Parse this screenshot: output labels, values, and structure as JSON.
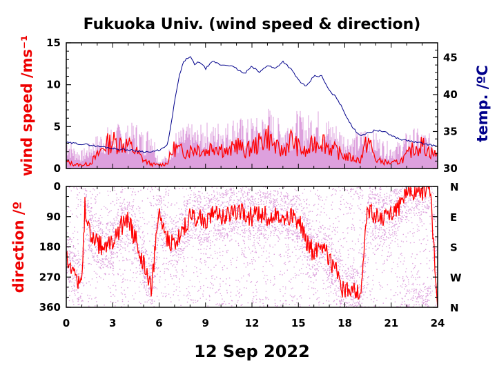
{
  "colors": {
    "wind_gust": "#dda0dd",
    "wind_mean": "#ff0000",
    "temperature": "#00008b",
    "direction_scatter": "#dda0dd",
    "direction_mean": "#ff0000",
    "axis": "#000000"
  },
  "chart_data": [
    {
      "type": "line",
      "title": "Fukuoka Univ. (wind speed & direction)",
      "xlabel": "12 Sep 2022",
      "ylabel": "wind speed /ms⁻¹",
      "y2label": "temp. /ºC",
      "xlim": [
        0,
        24
      ],
      "ylim": [
        0,
        15
      ],
      "y2lim": [
        30,
        47
      ],
      "x_ticks": [
        "0",
        "3",
        "6",
        "9",
        "12",
        "15",
        "18",
        "21",
        "24"
      ],
      "y_ticks": [
        "0",
        "5",
        "10",
        "15"
      ],
      "y2_ticks": [
        "30",
        "35",
        "40",
        "45"
      ],
      "grid": false,
      "series": [
        {
          "role": "wind_gust",
          "x": [
            0,
            0.5,
            1,
            1.5,
            2,
            2.5,
            3,
            3.5,
            4,
            4.5,
            5,
            5.5,
            6,
            6.5,
            7,
            7.5,
            8,
            8.5,
            9,
            9.5,
            10,
            10.5,
            11,
            11.5,
            12,
            12.5,
            13,
            13.5,
            14,
            14.5,
            15,
            15.5,
            16,
            16.5,
            17,
            17.5,
            18,
            18.5,
            19,
            19.5,
            20,
            20.5,
            21,
            21.5,
            22,
            22.5,
            23,
            23.5,
            24
          ],
          "values": [
            3.8,
            2.5,
            2.0,
            2.8,
            3.8,
            4.5,
            4.8,
            5.0,
            4.8,
            5.2,
            4.0,
            5.0,
            1.0,
            1.5,
            4.0,
            4.5,
            5.0,
            4.5,
            5.2,
            4.8,
            5.5,
            5.2,
            6.2,
            5.2,
            5.8,
            5.5,
            7.0,
            5.8,
            5.2,
            6.0,
            6.5,
            5.5,
            7.0,
            6.0,
            5.5,
            5.0,
            4.0,
            3.8,
            4.2,
            5.0,
            4.0,
            3.2,
            2.8,
            3.0,
            4.0,
            4.5,
            4.2,
            3.8,
            3.5
          ]
        },
        {
          "role": "wind_mean",
          "x": [
            0,
            0.5,
            1,
            1.5,
            2,
            2.5,
            3,
            3.5,
            4,
            4.5,
            5,
            5.5,
            6,
            6.5,
            7,
            7.5,
            8,
            8.5,
            9,
            9.5,
            10,
            10.5,
            11,
            11.5,
            12,
            12.5,
            13,
            13.5,
            14,
            14.5,
            15,
            15.5,
            16,
            16.5,
            17,
            17.5,
            18,
            18.5,
            19,
            19.5,
            20,
            20.5,
            21,
            21.5,
            22,
            22.5,
            23,
            23.5,
            24
          ],
          "values": [
            0.8,
            0.5,
            0.4,
            0.6,
            1.5,
            2.8,
            3.2,
            3.0,
            2.8,
            2.0,
            1.0,
            0.5,
            0.4,
            0.6,
            2.5,
            2.0,
            2.2,
            2.5,
            2.0,
            2.8,
            2.5,
            1.8,
            3.0,
            2.0,
            2.5,
            3.0,
            4.0,
            2.5,
            2.0,
            3.5,
            2.5,
            1.8,
            3.0,
            3.5,
            2.5,
            2.0,
            1.5,
            1.2,
            1.0,
            3.5,
            1.0,
            0.8,
            0.6,
            0.8,
            1.5,
            2.5,
            2.8,
            2.0,
            1.5
          ]
        },
        {
          "role": "temperature",
          "axis": "y2",
          "x": [
            0,
            0.5,
            1,
            1.5,
            2,
            2.5,
            3,
            3.5,
            4,
            4.5,
            5,
            5.5,
            6,
            6.5,
            6.7,
            7,
            7.3,
            7.6,
            8,
            8.3,
            8.6,
            9,
            9.5,
            10,
            10.5,
            11,
            11.5,
            12,
            12.5,
            13,
            13.5,
            14,
            14.5,
            15,
            15.5,
            16,
            16.5,
            17,
            17.5,
            18,
            18.5,
            19,
            19.5,
            20,
            20.5,
            21,
            21.5,
            22,
            22.5,
            23,
            23.5,
            24
          ],
          "values": [
            33.5,
            33.4,
            33.3,
            33.2,
            33.0,
            32.9,
            32.7,
            32.6,
            32.5,
            32.4,
            32.3,
            32.2,
            32.5,
            33.0,
            35.0,
            39.0,
            42.5,
            44.5,
            45.2,
            44.0,
            44.5,
            43.5,
            44.5,
            44.0,
            44.0,
            43.5,
            42.8,
            43.8,
            43.0,
            44.0,
            43.5,
            44.5,
            43.5,
            42.0,
            41.0,
            42.5,
            42.5,
            40.5,
            39.5,
            37.5,
            35.5,
            34.5,
            34.8,
            35.2,
            35.0,
            34.5,
            34.0,
            33.8,
            33.6,
            33.4,
            33.2,
            33.0
          ]
        }
      ]
    },
    {
      "type": "scatter",
      "xlabel": "12 Sep 2022",
      "ylabel": "direction /º",
      "xlim": [
        0,
        24
      ],
      "ylim": [
        360,
        0
      ],
      "x_ticks": [
        "0",
        "3",
        "6",
        "9",
        "12",
        "15",
        "18",
        "21",
        "24"
      ],
      "y_ticks": [
        "0",
        "90",
        "180",
        "270",
        "360"
      ],
      "y2_ticks": [
        "N",
        "E",
        "S",
        "W",
        "N"
      ],
      "grid": false,
      "series": [
        {
          "role": "direction_mean",
          "x": [
            0,
            0.5,
            1,
            1.2,
            1.5,
            2,
            2.5,
            3,
            3.5,
            4,
            4.5,
            5,
            5.5,
            6,
            6.5,
            7,
            7.5,
            8,
            8.5,
            9,
            9.5,
            10,
            10.5,
            11,
            11.5,
            12,
            12.5,
            13,
            13.5,
            14,
            14.5,
            15,
            15.5,
            16,
            16.5,
            17,
            17.5,
            18,
            18.5,
            19,
            19.5,
            20,
            20.5,
            21,
            21.5,
            22,
            22.5,
            23,
            23.5,
            24
          ],
          "values": [
            200,
            250,
            300,
            60,
            130,
            170,
            180,
            170,
            120,
            100,
            160,
            230,
            300,
            80,
            150,
            175,
            130,
            90,
            95,
            100,
            85,
            90,
            80,
            70,
            85,
            90,
            80,
            90,
            80,
            85,
            90,
            100,
            160,
            200,
            170,
            210,
            260,
            320,
            300,
            330,
            60,
            90,
            100,
            80,
            60,
            20,
            10,
            20,
            0,
            350
          ]
        }
      ]
    }
  ]
}
